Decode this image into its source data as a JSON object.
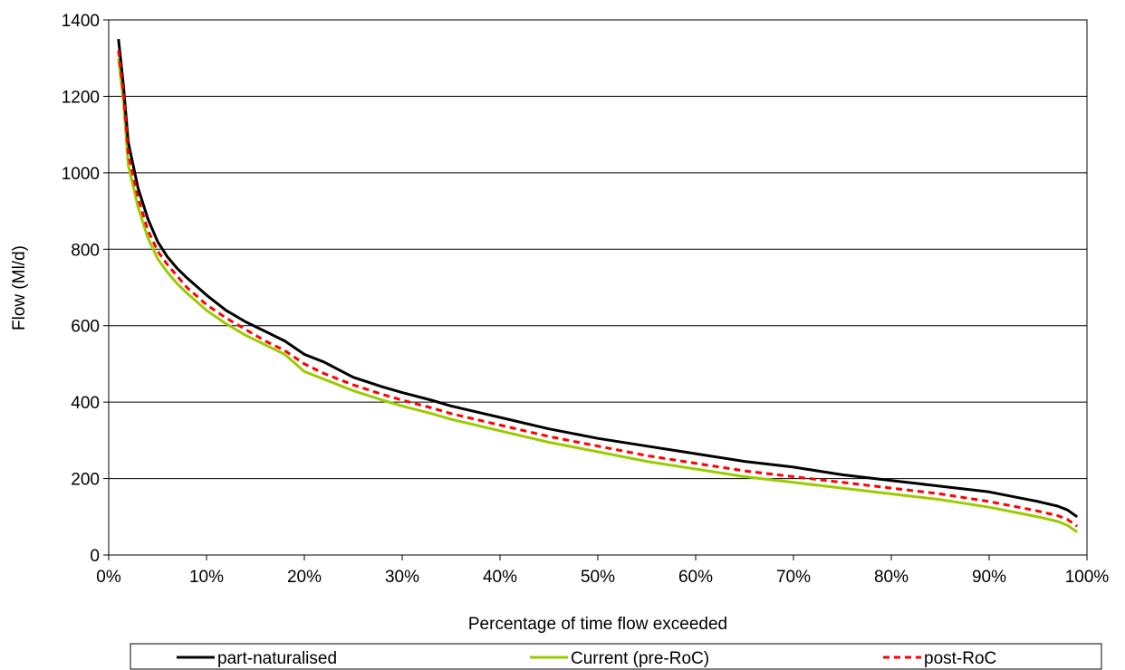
{
  "chart_data": {
    "type": "line",
    "title": "",
    "xlabel": "Percentage of time flow exceeded",
    "ylabel": "Flow (Ml/d)",
    "xlim": [
      0,
      100
    ],
    "ylim": [
      0,
      1400
    ],
    "x_ticks": [
      0,
      10,
      20,
      30,
      40,
      50,
      60,
      70,
      80,
      90,
      100
    ],
    "x_tick_labels": [
      "0%",
      "10%",
      "20%",
      "30%",
      "40%",
      "50%",
      "60%",
      "70%",
      "80%",
      "90%",
      "100%"
    ],
    "y_ticks": [
      0,
      200,
      400,
      600,
      800,
      1000,
      1200,
      1400
    ],
    "y_tick_labels": [
      "0",
      "200",
      "400",
      "600",
      "800",
      "1000",
      "1200",
      "1400"
    ],
    "grid": "horizontal",
    "legend_position": "bottom",
    "series": [
      {
        "name": "part-naturalised",
        "color": "#000000",
        "style": "solid",
        "x": [
          1,
          1.5,
          2,
          3,
          4,
          5,
          6,
          7,
          8,
          10,
          12,
          14,
          16,
          18,
          20,
          22,
          25,
          28,
          30,
          33,
          35,
          40,
          45,
          50,
          55,
          60,
          65,
          70,
          75,
          80,
          85,
          90,
          93,
          95,
          97,
          98,
          99
        ],
        "y": [
          1350,
          1230,
          1080,
          960,
          880,
          820,
          780,
          750,
          725,
          680,
          640,
          610,
          585,
          560,
          525,
          505,
          465,
          440,
          425,
          405,
          390,
          360,
          330,
          305,
          285,
          265,
          245,
          230,
          210,
          195,
          180,
          165,
          150,
          140,
          128,
          118,
          100
        ]
      },
      {
        "name": "Current (pre-RoC)",
        "color": "#99CC00",
        "style": "solid",
        "x": [
          1,
          1.5,
          2,
          3,
          4,
          5,
          6,
          7,
          8,
          10,
          12,
          14,
          16,
          18,
          20,
          22,
          25,
          28,
          30,
          33,
          35,
          40,
          45,
          50,
          55,
          60,
          65,
          70,
          75,
          80,
          85,
          90,
          93,
          95,
          97,
          98,
          99
        ],
        "y": [
          1300,
          1190,
          1020,
          910,
          830,
          775,
          740,
          710,
          685,
          640,
          605,
          575,
          550,
          525,
          480,
          460,
          430,
          405,
          390,
          370,
          355,
          325,
          295,
          270,
          245,
          225,
          205,
          190,
          175,
          160,
          145,
          125,
          110,
          100,
          88,
          78,
          60
        ]
      },
      {
        "name": "post-RoC",
        "color": "#FF0000",
        "style": "dashed",
        "x": [
          1,
          1.5,
          2,
          3,
          4,
          5,
          6,
          7,
          8,
          10,
          12,
          14,
          16,
          18,
          20,
          22,
          25,
          28,
          30,
          33,
          35,
          40,
          45,
          50,
          55,
          60,
          65,
          70,
          75,
          80,
          85,
          90,
          93,
          95,
          97,
          98,
          99
        ],
        "y": [
          1320,
          1210,
          1050,
          935,
          850,
          795,
          760,
          730,
          700,
          655,
          620,
          590,
          560,
          535,
          500,
          475,
          445,
          420,
          405,
          385,
          370,
          340,
          310,
          285,
          260,
          240,
          220,
          205,
          190,
          175,
          160,
          140,
          125,
          115,
          103,
          93,
          75
        ]
      }
    ]
  }
}
